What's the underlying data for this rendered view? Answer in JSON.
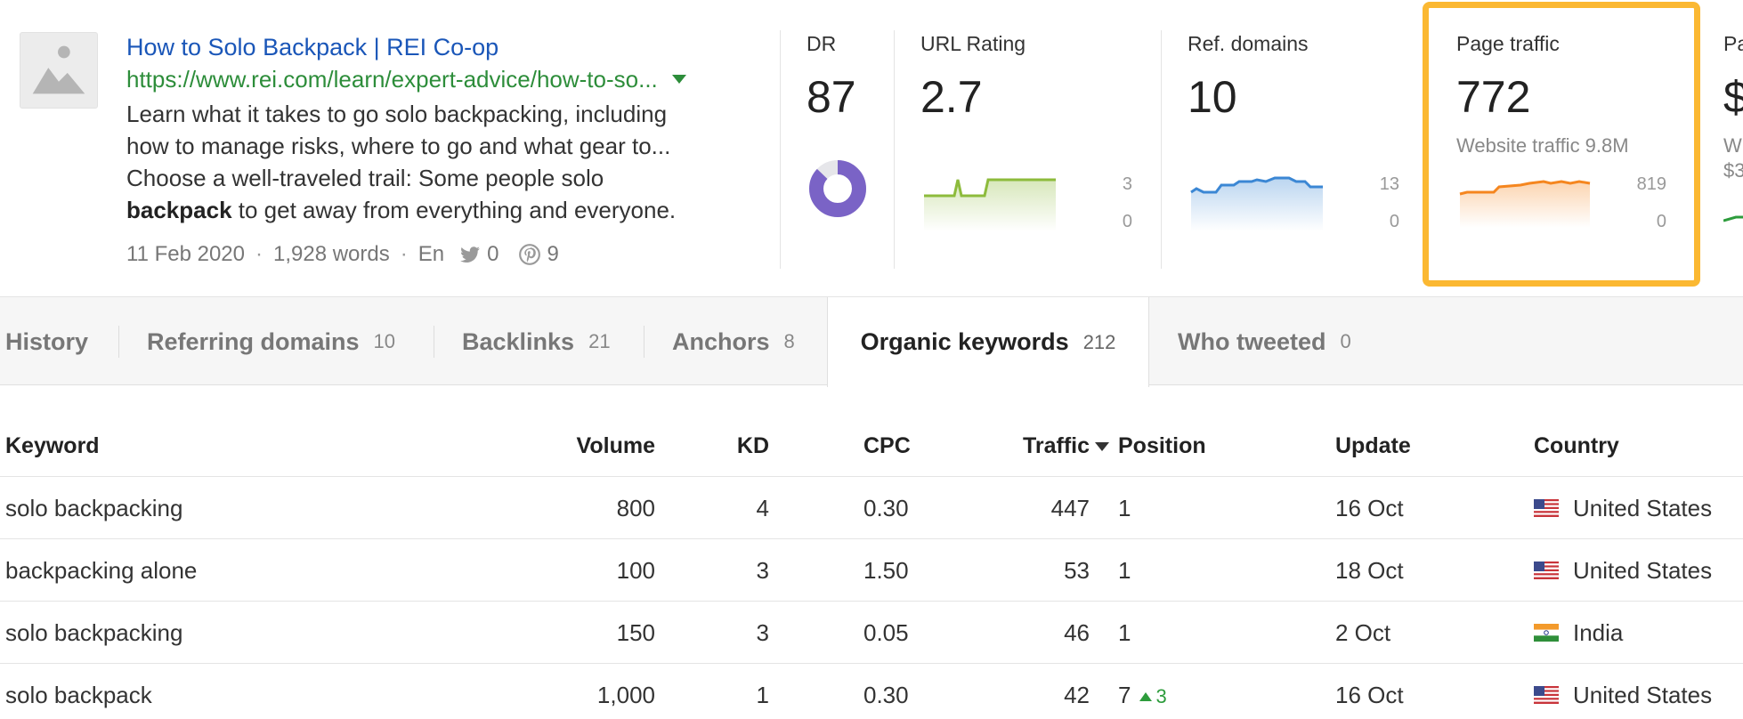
{
  "result": {
    "title": "How to Solo Backpack | REI Co-op",
    "url": "https://www.rei.com/learn/expert-advice/how-to-so...",
    "desc_line1": "Learn what it takes to go solo backpacking, including",
    "desc_line2": "how to manage risks, where to go and what gear to...",
    "desc_line3": "Choose a well-traveled trail: Some people solo",
    "desc_bold": "backpack",
    "desc_line4_rest": " to get away from everything and everyone.",
    "date": "11 Feb 2020",
    "words": "1,928 words",
    "lang": "En",
    "tweets": "0",
    "pins": "9",
    "icons": [
      "image-placeholder-icon",
      "twitter-icon",
      "pinterest-icon"
    ]
  },
  "metrics": {
    "dr": {
      "label": "DR",
      "value": "87",
      "fill": 0.87
    },
    "url_rating": {
      "label": "URL Rating",
      "value": "2.7",
      "axis_max": "3",
      "axis_min": "0"
    },
    "ref_domains": {
      "label": "Ref. domains",
      "value": "10",
      "axis_max": "13",
      "axis_min": "0"
    },
    "page_traffic": {
      "label": "Page traffic",
      "value": "772",
      "sub": "Website traffic 9.8M",
      "axis_max": "819",
      "axis_min": "0"
    },
    "partial": {
      "label": "Pa",
      "value": "$",
      "sub_line1": "W",
      "sub_line2": "$3"
    }
  },
  "tabs": [
    {
      "label": "History",
      "count": ""
    },
    {
      "label": "Referring domains",
      "count": "10"
    },
    {
      "label": "Backlinks",
      "count": "21"
    },
    {
      "label": "Anchors",
      "count": "8"
    },
    {
      "label": "Organic keywords",
      "count": "212"
    },
    {
      "label": "Who tweeted",
      "count": "0"
    }
  ],
  "table": {
    "headers": {
      "keyword": "Keyword",
      "volume": "Volume",
      "kd": "KD",
      "cpc": "CPC",
      "traffic": "Traffic",
      "position": "Position",
      "update": "Update",
      "country": "Country"
    },
    "rows": [
      {
        "keyword": "solo backpacking",
        "volume": "800",
        "kd": "4",
        "cpc": "0.30",
        "traffic": "447",
        "position": "1",
        "change": "",
        "update": "16 Oct",
        "country": "United States"
      },
      {
        "keyword": "backpacking alone",
        "volume": "100",
        "kd": "3",
        "cpc": "1.50",
        "traffic": "53",
        "position": "1",
        "change": "",
        "update": "18 Oct",
        "country": "United States"
      },
      {
        "keyword": "solo backpacking",
        "volume": "150",
        "kd": "3",
        "cpc": "0.05",
        "traffic": "46",
        "position": "1",
        "change": "",
        "update": "2 Oct",
        "country": "India"
      },
      {
        "keyword": "solo backpack",
        "volume": "1,000",
        "kd": "1",
        "cpc": "0.30",
        "traffic": "42",
        "position": "7",
        "change": "3",
        "update": "16 Oct",
        "country": "United States"
      }
    ]
  },
  "colors": {
    "link": "#1a56b8",
    "url": "#2d8d3a",
    "highlight": "#fbb832",
    "dr_donut": "#7a63c6",
    "url_rating_line": "#8dbb3c",
    "ref_domains_line": "#3b87d4",
    "page_traffic_line": "#f5861f"
  }
}
